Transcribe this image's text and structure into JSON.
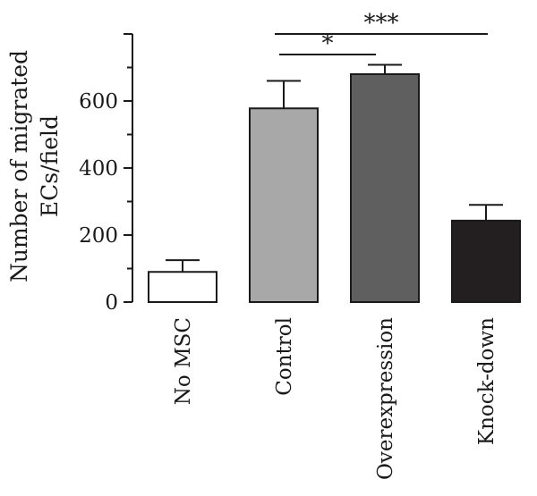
{
  "chart_data": {
    "type": "bar",
    "categories": [
      "No MSC",
      "Control",
      "Overexpression",
      "Knock-down"
    ],
    "values": [
      90,
      578,
      680,
      243
    ],
    "errors": [
      35,
      82,
      28,
      47
    ],
    "colors": [
      "#ffffff",
      "#a8a8a8",
      "#5f5f5f",
      "#231f20"
    ],
    "ylabel_lines": [
      "Number of migrated",
      "ECs/field"
    ],
    "yticks": [
      0,
      200,
      400,
      600
    ],
    "ylim": [
      0,
      800
    ],
    "significance": [
      {
        "from": 1,
        "to": 2,
        "label": "*"
      },
      {
        "from": 1,
        "to": 3,
        "label": "***"
      }
    ]
  }
}
